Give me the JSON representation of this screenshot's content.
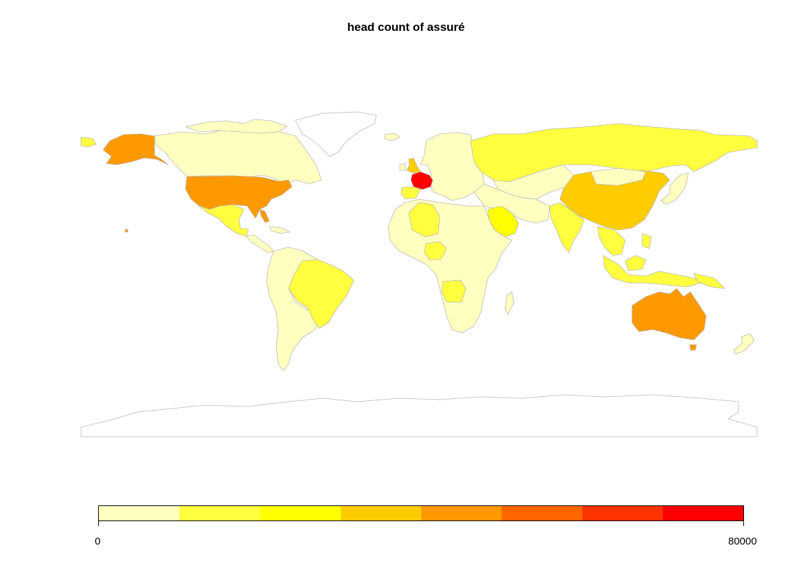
{
  "title": "head count of assuré",
  "colors": {
    "no_data": "#ffffff",
    "border": "#b8b8b8",
    "classes": [
      "#ffffc0",
      "#ffff40",
      "#ffff00",
      "#ffcc00",
      "#ff9900",
      "#ff6600",
      "#ff3300",
      "#ff0000"
    ]
  },
  "legend": {
    "min_label": "0",
    "max_label": "80000",
    "range": [
      0,
      80000
    ],
    "bins": 8
  },
  "regions": [
    {
      "name": "Canada",
      "class": 0
    },
    {
      "name": "Alaska (USA)",
      "class": 4
    },
    {
      "name": "USA",
      "class": 4
    },
    {
      "name": "Mexico",
      "class": 1
    },
    {
      "name": "Central America",
      "class": 0
    },
    {
      "name": "Brazil",
      "class": 1
    },
    {
      "name": "South America",
      "class": 0
    },
    {
      "name": "Greenland",
      "class": null
    },
    {
      "name": "Antarctica",
      "class": null
    },
    {
      "name": "United Kingdom",
      "class": 3
    },
    {
      "name": "France",
      "class": 7
    },
    {
      "name": "Spain",
      "class": 1
    },
    {
      "name": "Europe",
      "class": 0
    },
    {
      "name": "Russia",
      "class": 1
    },
    {
      "name": "Kazakhstan",
      "class": 0
    },
    {
      "name": "China",
      "class": 3
    },
    {
      "name": "India",
      "class": 1
    },
    {
      "name": "Saudi Arabia",
      "class": 2
    },
    {
      "name": "Middle East",
      "class": 0
    },
    {
      "name": "Algeria",
      "class": 1
    },
    {
      "name": "Nigeria",
      "class": 1
    },
    {
      "name": "Angola",
      "class": 1
    },
    {
      "name": "Africa",
      "class": 0
    },
    {
      "name": "Southeast Asia",
      "class": 1
    },
    {
      "name": "Indonesia",
      "class": 1
    },
    {
      "name": "Japan",
      "class": 0
    },
    {
      "name": "Australia",
      "class": 4
    },
    {
      "name": "New Zealand",
      "class": 0
    }
  ]
}
